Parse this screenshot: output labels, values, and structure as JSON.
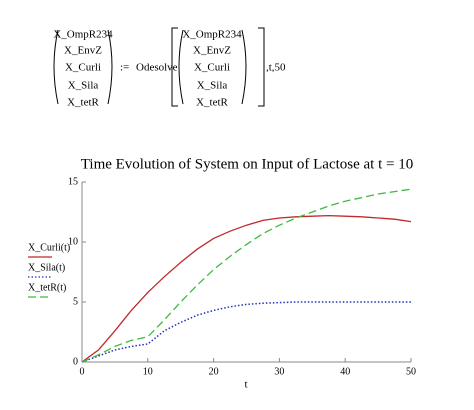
{
  "equation": {
    "lhs": [
      "X_OmpR234",
      "X_EnvZ",
      "X_Curli",
      "X_Sila",
      "X_tetR"
    ],
    "operator": ":=",
    "function": "Odesolve",
    "args": [
      "X_OmpR234",
      "X_EnvZ",
      "X_Curli",
      "X_Sila",
      "X_tetR"
    ],
    "tail": ",t,50"
  },
  "chart_data": {
    "type": "line",
    "title": "Time Evolution of System on Input of Lactose at t = 10",
    "x_label": "t",
    "x": [
      0,
      2.5,
      5,
      7.5,
      10,
      12.5,
      15,
      17.5,
      20,
      22.5,
      25,
      27.5,
      30,
      32.5,
      35,
      37.5,
      40,
      42.5,
      45,
      47.5,
      50
    ],
    "series": [
      {
        "name": "X_Curli(t)",
        "color": "#c0282d",
        "dash": "solid",
        "values": [
          0,
          1.0,
          2.6,
          4.3,
          5.8,
          7.1,
          8.3,
          9.4,
          10.3,
          10.9,
          11.4,
          11.8,
          12.0,
          12.1,
          12.15,
          12.2,
          12.15,
          12.1,
          12.0,
          11.9,
          11.7
        ]
      },
      {
        "name": "X_Sila(t)",
        "color": "#2430b8",
        "dash": "dotted",
        "values": [
          0,
          0.5,
          1.0,
          1.3,
          1.5,
          2.6,
          3.3,
          3.9,
          4.3,
          4.6,
          4.8,
          4.9,
          4.95,
          5.0,
          5.0,
          5.0,
          5.0,
          5.0,
          5.0,
          5.0,
          5.0
        ]
      },
      {
        "name": "X_tetR(t)",
        "color": "#3dbb3d",
        "dash": "dashed",
        "values": [
          0,
          0.6,
          1.3,
          1.8,
          2.1,
          3.5,
          5.0,
          6.4,
          7.7,
          8.8,
          9.8,
          10.7,
          11.4,
          12.0,
          12.5,
          13.0,
          13.4,
          13.7,
          14.0,
          14.2,
          14.4
        ]
      }
    ],
    "xlim": [
      0,
      50
    ],
    "xticks": [
      0,
      10,
      20,
      30,
      40,
      50
    ],
    "ylim": [
      0,
      15
    ],
    "yticks": [
      0,
      5,
      10,
      15
    ],
    "grid": false
  }
}
